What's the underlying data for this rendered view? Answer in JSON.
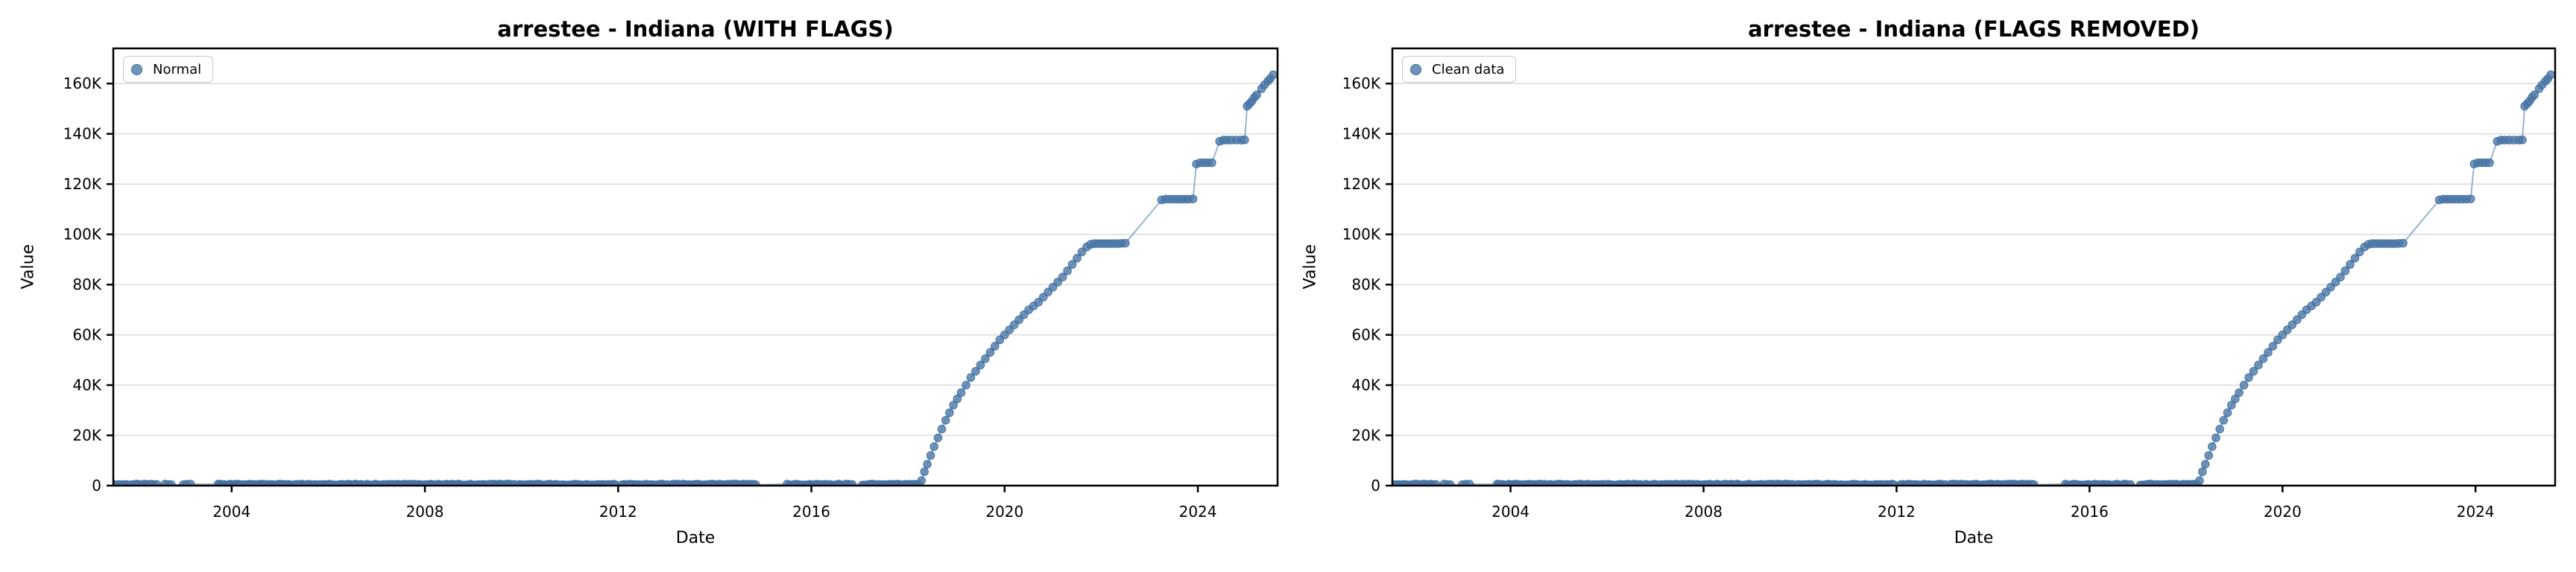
{
  "page": {
    "background": "#ffffff"
  },
  "chart_data": [
    {
      "type": "scatter",
      "title": "arrestee - Indiana (WITH FLAGS)",
      "xlabel": "Date",
      "ylabel": "Value",
      "legend": {
        "label": "Normal",
        "position": "upper left"
      },
      "xlim": [
        2001.55,
        2025.65
      ],
      "ylim": [
        0,
        174000
      ],
      "x_tick_values": [
        2004,
        2008,
        2012,
        2016,
        2020,
        2024
      ],
      "x_tick_labels": [
        "2004",
        "2008",
        "2012",
        "2016",
        "2020",
        "2024"
      ],
      "y_tick_values": [
        0,
        20000,
        40000,
        60000,
        80000,
        100000,
        120000,
        140000,
        160000
      ],
      "y_tick_labels": [
        "0",
        "20K",
        "40K",
        "60K",
        "80K",
        "100K",
        "120K",
        "140K",
        "160K"
      ],
      "grid": {
        "axis": "y",
        "color": "#dddddd"
      },
      "colors": {
        "marker_fill": "#4d7aa8",
        "marker_edge": "#39689c",
        "line": "#8aa7ca"
      },
      "series": [
        {
          "name": "Normal",
          "marker": "circle",
          "zero_segments": [
            [
              2001.55,
              2002.45,
              18
            ],
            [
              2002.62,
              2002.75,
              3
            ],
            [
              2003.0,
              2003.15,
              3
            ],
            [
              2003.72,
              2009.85,
              150
            ],
            [
              2009.95,
              2011.95,
              48
            ],
            [
              2012.08,
              2013.02,
              20
            ],
            [
              2013.12,
              2014.85,
              40
            ],
            [
              2015.5,
              2016.85,
              30
            ],
            [
              2017.05,
              2018.22,
              26
            ]
          ],
          "points": [
            [
              2018.28,
              2000
            ],
            [
              2018.34,
              5500
            ],
            [
              2018.4,
              8500
            ],
            [
              2018.47,
              12000
            ],
            [
              2018.54,
              15500
            ],
            [
              2018.62,
              19000
            ],
            [
              2018.7,
              22500
            ],
            [
              2018.78,
              26000
            ],
            [
              2018.86,
              29000
            ],
            [
              2018.94,
              32000
            ],
            [
              2019.02,
              34500
            ],
            [
              2019.1,
              37000
            ],
            [
              2019.2,
              40000
            ],
            [
              2019.3,
              43000
            ],
            [
              2019.4,
              45500
            ],
            [
              2019.5,
              48000
            ],
            [
              2019.6,
              50500
            ],
            [
              2019.7,
              53000
            ],
            [
              2019.8,
              55500
            ],
            [
              2019.9,
              58000
            ],
            [
              2020.0,
              60000
            ],
            [
              2020.1,
              62000
            ],
            [
              2020.2,
              64000
            ],
            [
              2020.3,
              66000
            ],
            [
              2020.4,
              68000
            ],
            [
              2020.5,
              70000
            ],
            [
              2020.6,
              71500
            ],
            [
              2020.7,
              73000
            ],
            [
              2020.8,
              75000
            ],
            [
              2020.9,
              77000
            ],
            [
              2021.0,
              79000
            ],
            [
              2021.1,
              81000
            ],
            [
              2021.2,
              83000
            ],
            [
              2021.3,
              85500
            ],
            [
              2021.4,
              88000
            ],
            [
              2021.5,
              90500
            ],
            [
              2021.6,
              93000
            ],
            [
              2021.7,
              95000
            ],
            [
              2021.78,
              96000
            ],
            [
              2021.86,
              96300
            ],
            [
              2021.94,
              96300
            ],
            [
              2022.02,
              96300
            ],
            [
              2022.1,
              96300
            ],
            [
              2022.18,
              96300
            ],
            [
              2022.26,
              96300
            ],
            [
              2022.34,
              96300
            ],
            [
              2022.42,
              96400
            ],
            [
              2022.5,
              96500
            ],
            [
              2023.25,
              113700
            ],
            [
              2023.33,
              114000
            ],
            [
              2023.41,
              114000
            ],
            [
              2023.49,
              114000
            ],
            [
              2023.57,
              114000
            ],
            [
              2023.65,
              114000
            ],
            [
              2023.73,
              114000
            ],
            [
              2023.81,
              114000
            ],
            [
              2023.9,
              114100
            ],
            [
              2023.97,
              128000
            ],
            [
              2024.05,
              128500
            ],
            [
              2024.13,
              128500
            ],
            [
              2024.21,
              128500
            ],
            [
              2024.29,
              128500
            ],
            [
              2024.45,
              137000
            ],
            [
              2024.53,
              137500
            ],
            [
              2024.61,
              137500
            ],
            [
              2024.7,
              137500
            ],
            [
              2024.8,
              137500
            ],
            [
              2024.9,
              137500
            ],
            [
              2024.97,
              137600
            ],
            [
              2025.02,
              151000
            ],
            [
              2025.07,
              152000
            ],
            [
              2025.12,
              153000
            ],
            [
              2025.17,
              154500
            ],
            [
              2025.22,
              155500
            ],
            [
              2025.32,
              158000
            ],
            [
              2025.38,
              159500
            ],
            [
              2025.45,
              161000
            ],
            [
              2025.5,
              162000
            ],
            [
              2025.56,
              163500
            ]
          ]
        }
      ]
    },
    {
      "type": "scatter",
      "title": "arrestee - Indiana (FLAGS REMOVED)",
      "xlabel": "Date",
      "ylabel": "Value",
      "legend": {
        "label": "Clean data",
        "position": "upper left"
      },
      "xlim": [
        2001.55,
        2025.65
      ],
      "ylim": [
        0,
        174000
      ],
      "x_tick_values": [
        2004,
        2008,
        2012,
        2016,
        2020,
        2024
      ],
      "x_tick_labels": [
        "2004",
        "2008",
        "2012",
        "2016",
        "2020",
        "2024"
      ],
      "y_tick_values": [
        0,
        20000,
        40000,
        60000,
        80000,
        100000,
        120000,
        140000,
        160000
      ],
      "y_tick_labels": [
        "0",
        "20K",
        "40K",
        "60K",
        "80K",
        "100K",
        "120K",
        "140K",
        "160K"
      ],
      "grid": {
        "axis": "y",
        "color": "#dddddd"
      },
      "colors": {
        "marker_fill": "#4d7aa8",
        "marker_edge": "#39689c",
        "line": "#8aa7ca"
      },
      "series": [
        {
          "name": "Clean data",
          "marker": "circle",
          "zero_segments": [
            [
              2001.55,
              2002.45,
              18
            ],
            [
              2002.62,
              2002.75,
              3
            ],
            [
              2003.0,
              2003.15,
              3
            ],
            [
              2003.72,
              2009.85,
              150
            ],
            [
              2009.95,
              2011.95,
              48
            ],
            [
              2012.08,
              2013.02,
              20
            ],
            [
              2013.12,
              2014.85,
              40
            ],
            [
              2015.5,
              2016.85,
              30
            ],
            [
              2017.05,
              2018.22,
              26
            ]
          ],
          "points": [
            [
              2018.28,
              2000
            ],
            [
              2018.34,
              5500
            ],
            [
              2018.4,
              8500
            ],
            [
              2018.47,
              12000
            ],
            [
              2018.54,
              15500
            ],
            [
              2018.62,
              19000
            ],
            [
              2018.7,
              22500
            ],
            [
              2018.78,
              26000
            ],
            [
              2018.86,
              29000
            ],
            [
              2018.94,
              32000
            ],
            [
              2019.02,
              34500
            ],
            [
              2019.1,
              37000
            ],
            [
              2019.2,
              40000
            ],
            [
              2019.3,
              43000
            ],
            [
              2019.4,
              45500
            ],
            [
              2019.5,
              48000
            ],
            [
              2019.6,
              50500
            ],
            [
              2019.7,
              53000
            ],
            [
              2019.8,
              55500
            ],
            [
              2019.9,
              58000
            ],
            [
              2020.0,
              60000
            ],
            [
              2020.1,
              62000
            ],
            [
              2020.2,
              64000
            ],
            [
              2020.3,
              66000
            ],
            [
              2020.4,
              68000
            ],
            [
              2020.5,
              70000
            ],
            [
              2020.6,
              71500
            ],
            [
              2020.7,
              73000
            ],
            [
              2020.8,
              75000
            ],
            [
              2020.9,
              77000
            ],
            [
              2021.0,
              79000
            ],
            [
              2021.1,
              81000
            ],
            [
              2021.2,
              83000
            ],
            [
              2021.3,
              85500
            ],
            [
              2021.4,
              88000
            ],
            [
              2021.5,
              90500
            ],
            [
              2021.6,
              93000
            ],
            [
              2021.7,
              95000
            ],
            [
              2021.78,
              96000
            ],
            [
              2021.86,
              96300
            ],
            [
              2021.94,
              96300
            ],
            [
              2022.02,
              96300
            ],
            [
              2022.1,
              96300
            ],
            [
              2022.18,
              96300
            ],
            [
              2022.26,
              96300
            ],
            [
              2022.34,
              96300
            ],
            [
              2022.42,
              96400
            ],
            [
              2022.5,
              96500
            ],
            [
              2023.25,
              113700
            ],
            [
              2023.33,
              114000
            ],
            [
              2023.41,
              114000
            ],
            [
              2023.49,
              114000
            ],
            [
              2023.57,
              114000
            ],
            [
              2023.65,
              114000
            ],
            [
              2023.73,
              114000
            ],
            [
              2023.81,
              114000
            ],
            [
              2023.9,
              114100
            ],
            [
              2023.97,
              128000
            ],
            [
              2024.05,
              128500
            ],
            [
              2024.13,
              128500
            ],
            [
              2024.21,
              128500
            ],
            [
              2024.29,
              128500
            ],
            [
              2024.45,
              137000
            ],
            [
              2024.53,
              137500
            ],
            [
              2024.61,
              137500
            ],
            [
              2024.7,
              137500
            ],
            [
              2024.8,
              137500
            ],
            [
              2024.9,
              137500
            ],
            [
              2024.97,
              137600
            ],
            [
              2025.02,
              151000
            ],
            [
              2025.07,
              152000
            ],
            [
              2025.12,
              153000
            ],
            [
              2025.17,
              154500
            ],
            [
              2025.22,
              155500
            ],
            [
              2025.32,
              158000
            ],
            [
              2025.38,
              159500
            ],
            [
              2025.45,
              161000
            ],
            [
              2025.5,
              162000
            ],
            [
              2025.56,
              163500
            ]
          ]
        }
      ]
    }
  ]
}
